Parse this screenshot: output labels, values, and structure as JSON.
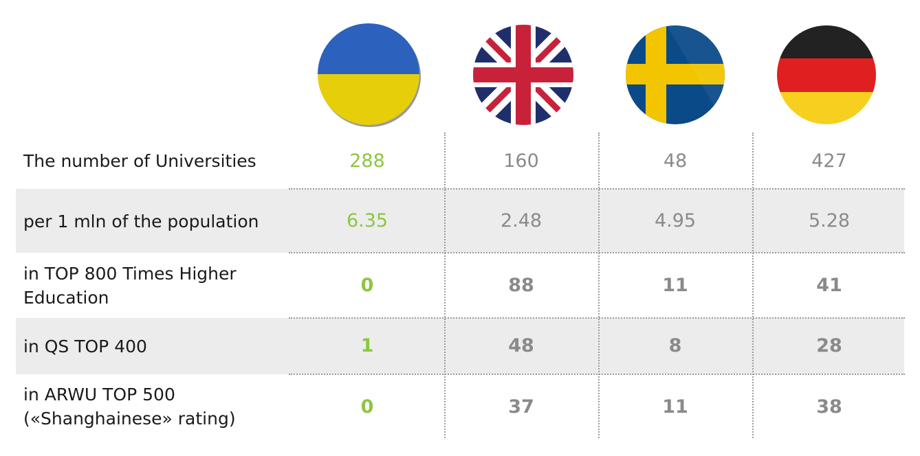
{
  "chart_data": {
    "type": "table",
    "countries": [
      {
        "name": "Ukraine",
        "flag": "ukraine-flag-icon"
      },
      {
        "name": "United Kingdom",
        "flag": "uk-flag-icon"
      },
      {
        "name": "Sweden",
        "flag": "sweden-flag-icon"
      },
      {
        "name": "Germany",
        "flag": "germany-flag-icon"
      }
    ],
    "rows": [
      {
        "label": "The number of Universities",
        "values": [
          "288",
          "160",
          "48",
          "427"
        ],
        "bold": false,
        "shaded": false
      },
      {
        "label": "per 1 mln of the population",
        "values": [
          "6.35",
          "2.48",
          "4.95",
          "5.28"
        ],
        "bold": false,
        "shaded": true
      },
      {
        "label": "in TOP 800 Times Higher Education",
        "values": [
          "0",
          "88",
          "11",
          "41"
        ],
        "bold": true,
        "shaded": false
      },
      {
        "label": "in QS TOP 400",
        "values": [
          "1",
          "48",
          "8",
          "28"
        ],
        "bold": true,
        "shaded": true
      },
      {
        "label": "in ARWU TOP 500 («Shanghainese» rating)",
        "values": [
          "0",
          "37",
          "11",
          "38"
        ],
        "bold": true,
        "shaded": false
      }
    ]
  },
  "colors": {
    "highlight": "#8dc63f",
    "value": "#8a8a8a",
    "label": "#1a1a1a",
    "row_shade": "#ececec"
  }
}
